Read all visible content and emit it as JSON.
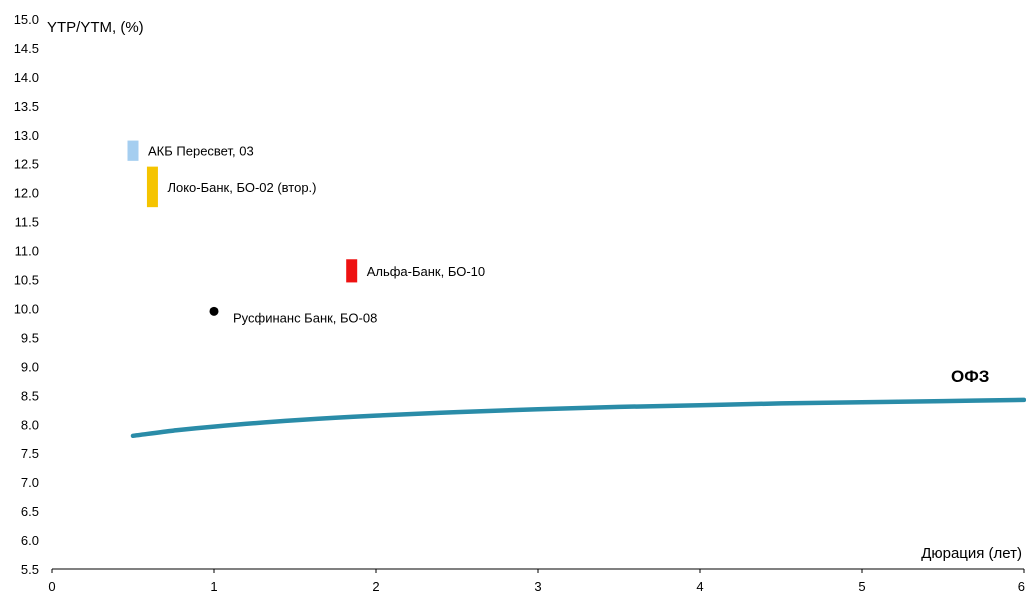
{
  "chart_data": {
    "type": "scatter",
    "ylabel": "YTP/YTM, (%)",
    "xlabel": "Дюрация (лет)",
    "xlim": [
      0,
      6
    ],
    "ylim": [
      5.5,
      15.0
    ],
    "x_ticks": [
      "0",
      "1",
      "2",
      "3",
      "4",
      "5",
      "6"
    ],
    "y_ticks": [
      "5.5",
      "6.0",
      "6.5",
      "7.0",
      "7.5",
      "8.0",
      "8.5",
      "9.0",
      "9.5",
      "10.0",
      "10.5",
      "11.0",
      "11.5",
      "12.0",
      "12.5",
      "13.0",
      "13.5",
      "14.0",
      "14.5",
      "15.0"
    ],
    "grid": false,
    "curve": {
      "name": "ОФЗ",
      "color": "#2A8CA8",
      "x": [
        0.5,
        0.75,
        1.0,
        1.5,
        2.0,
        2.5,
        3.0,
        3.5,
        4.0,
        4.5,
        5.0,
        5.5,
        6.0
      ],
      "y": [
        7.8,
        7.89,
        7.96,
        8.07,
        8.15,
        8.21,
        8.26,
        8.3,
        8.33,
        8.36,
        8.38,
        8.4,
        8.42
      ]
    },
    "points": [
      {
        "label": "АКБ Пересвет, 03",
        "x": 0.5,
        "y_min": 12.55,
        "y_max": 12.9,
        "marker": "bar",
        "color": "#A5CEF0"
      },
      {
        "label": "Локо-Банк, БО-02 (втор.)",
        "x": 0.62,
        "y_min": 11.75,
        "y_max": 12.45,
        "marker": "bar",
        "color": "#F5C400"
      },
      {
        "label": "Альфа-Банк, БО-10",
        "x": 1.85,
        "y_min": 10.45,
        "y_max": 10.85,
        "marker": "bar",
        "color": "#EE1111"
      },
      {
        "label": "Русфинанс Банк, БО-08",
        "x": 1.0,
        "y": 9.95,
        "marker": "dot",
        "color": "#000000"
      }
    ]
  }
}
